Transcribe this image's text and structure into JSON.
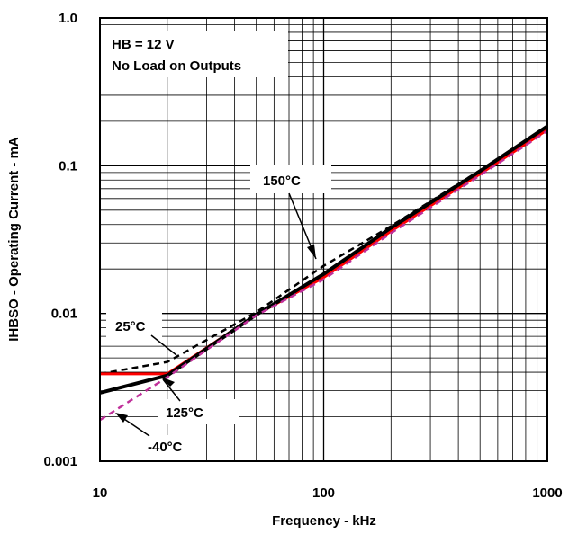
{
  "chart_data": {
    "type": "line",
    "xlabel": "Frequency - kHz",
    "ylabel": "IHBSO - Operating Current - mA",
    "x_scale": "log",
    "y_scale": "log",
    "xlim": [
      10,
      1000
    ],
    "ylim": [
      0.001,
      1.0
    ],
    "grid": true,
    "x_ticks": [
      "10",
      "100",
      "1000"
    ],
    "y_ticks": [
      "0.001",
      "0.01",
      "0.1",
      "1.0"
    ],
    "conditions": [
      "HB = 12 V",
      "No Load on Outputs"
    ],
    "series": [
      {
        "name": "150°C",
        "color": "#000000",
        "style": "dashed",
        "x": [
          10,
          20,
          50,
          100,
          200,
          500,
          1000
        ],
        "y": [
          0.0039,
          0.0047,
          0.0102,
          0.021,
          0.039,
          0.093,
          0.185
        ]
      },
      {
        "name": "25°C",
        "color": "#ff0000",
        "style": "solid",
        "x": [
          10,
          20,
          50,
          100,
          200,
          500,
          1000
        ],
        "y": [
          0.0039,
          0.0039,
          0.0098,
          0.0175,
          0.036,
          0.088,
          0.175
        ]
      },
      {
        "name": "125°C",
        "color": "#000000",
        "style": "solid",
        "x": [
          10,
          20,
          50,
          100,
          200,
          500,
          1000
        ],
        "y": [
          0.0029,
          0.0038,
          0.0098,
          0.0185,
          0.038,
          0.092,
          0.185
        ]
      },
      {
        "name": "-40°C",
        "color": "#c0309a",
        "style": "dashed",
        "x": [
          10,
          20,
          50,
          100,
          200,
          500,
          1000
        ],
        "y": [
          0.0019,
          0.0037,
          0.0097,
          0.017,
          0.035,
          0.086,
          0.172
        ]
      }
    ],
    "annotations": [
      {
        "text": "150°C",
        "x": 100,
        "y": 0.021
      },
      {
        "text": "25°C",
        "x": 20,
        "y": 0.0047
      },
      {
        "text": "125°C",
        "x": 20,
        "y": 0.0038
      },
      {
        "text": "-40°C",
        "x": 13,
        "y": 0.0023
      }
    ]
  }
}
